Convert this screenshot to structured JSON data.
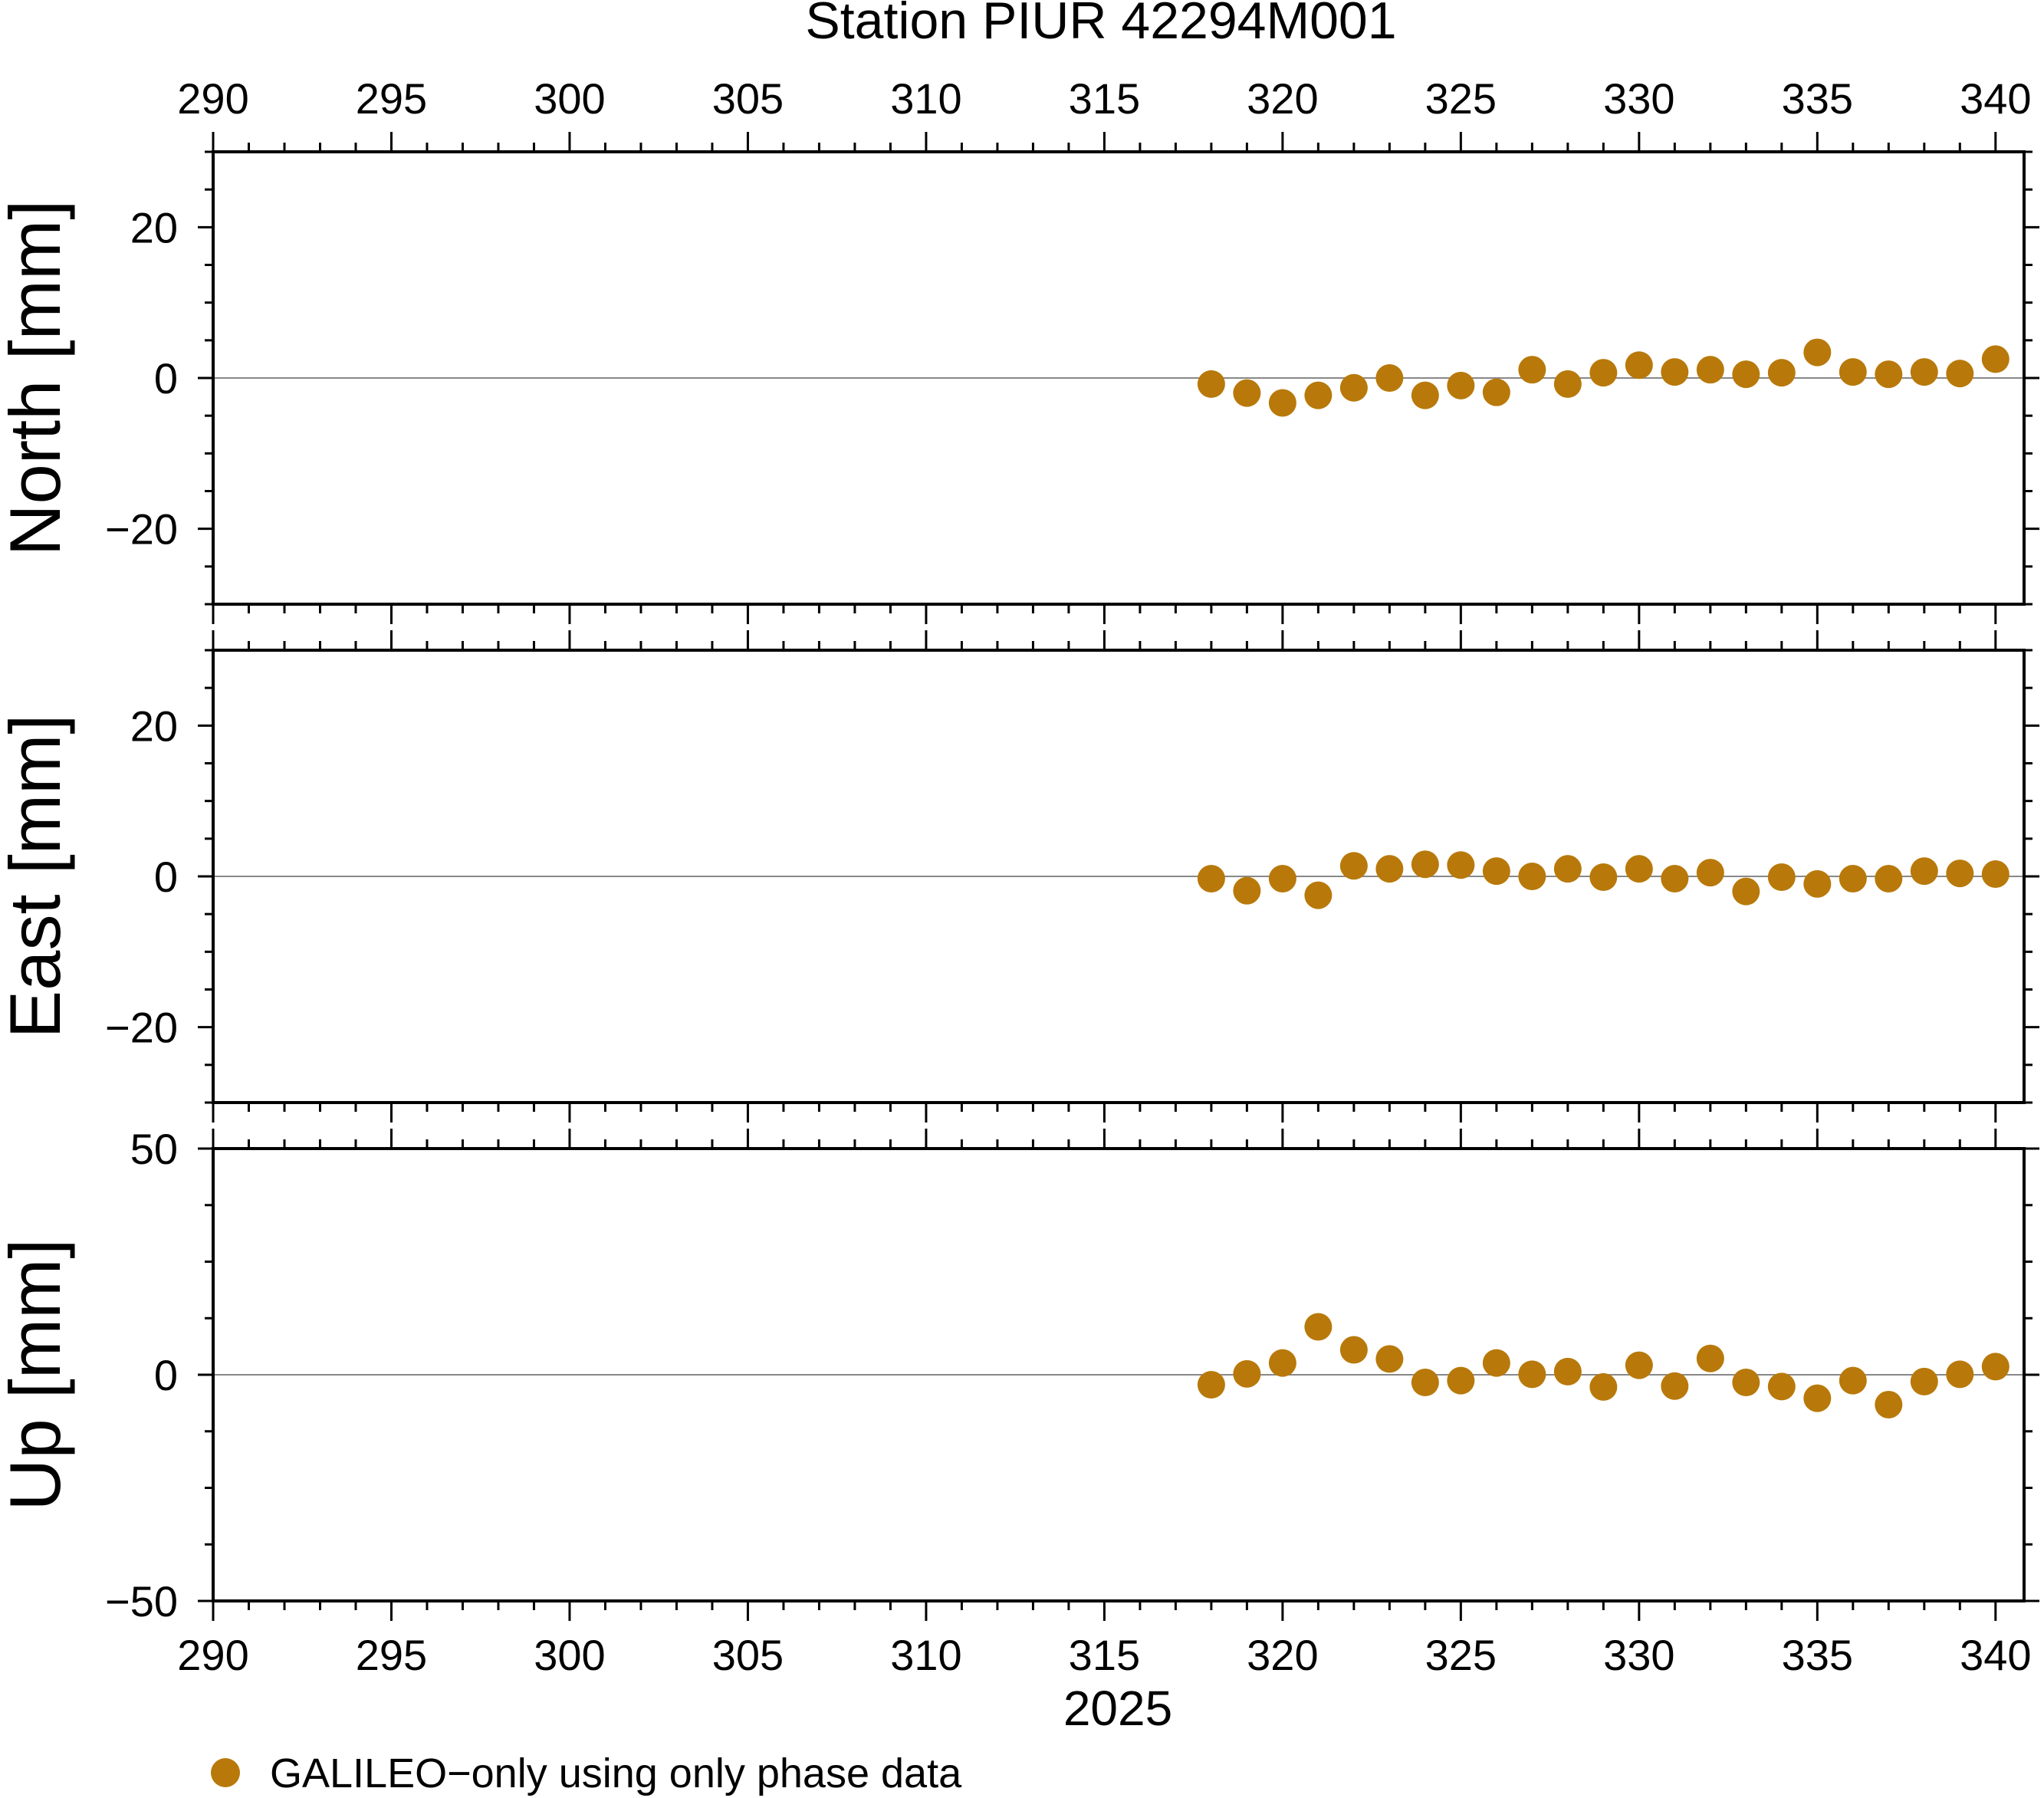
{
  "title": "Station PIUR 42294M001",
  "xlabel": "2025",
  "legend": {
    "label": "GALILEO−only using only phase data",
    "color": "#b8790a",
    "marker": "circle"
  },
  "chart_data": [
    {
      "type": "scatter",
      "ylabel": "North [mm]",
      "xlim": [
        290,
        340.8
      ],
      "ylim": [
        -30,
        30
      ],
      "x_ticks": [
        290,
        295,
        300,
        305,
        310,
        315,
        320,
        325,
        330,
        335,
        340
      ],
      "y_ticks": [
        -20,
        0,
        20
      ],
      "y_tick_labels": [
        "−20",
        "0",
        "20"
      ],
      "zero_line": true,
      "series": [
        {
          "color": "#b8790a",
          "x": [
            318,
            319,
            320,
            321,
            322,
            323,
            324,
            325,
            326,
            327,
            328,
            329,
            330,
            331,
            332,
            333,
            334,
            335,
            336,
            337,
            338,
            339,
            340
          ],
          "y": [
            -0.8,
            -2.0,
            -3.3,
            -2.3,
            -1.3,
            0.0,
            -2.3,
            -1.0,
            -1.9,
            1.1,
            -0.8,
            0.7,
            1.7,
            0.8,
            1.1,
            0.5,
            0.7,
            3.4,
            0.8,
            0.5,
            0.8,
            0.6,
            2.5
          ]
        }
      ]
    },
    {
      "type": "scatter",
      "ylabel": "East [mm]",
      "xlim": [
        290,
        340.8
      ],
      "ylim": [
        -30,
        30
      ],
      "x_ticks": [
        290,
        295,
        300,
        305,
        310,
        315,
        320,
        325,
        330,
        335,
        340
      ],
      "y_ticks": [
        -20,
        0,
        20
      ],
      "y_tick_labels": [
        "−20",
        "0",
        "20"
      ],
      "zero_line": true,
      "series": [
        {
          "color": "#b8790a",
          "x": [
            318,
            319,
            320,
            321,
            322,
            323,
            324,
            325,
            326,
            327,
            328,
            329,
            330,
            331,
            332,
            333,
            334,
            335,
            336,
            337,
            338,
            339,
            340
          ],
          "y": [
            -0.3,
            -1.9,
            -0.3,
            -2.5,
            1.4,
            1.0,
            1.6,
            1.5,
            0.7,
            0.0,
            1.0,
            -0.1,
            1.0,
            -0.3,
            0.5,
            -2.0,
            -0.1,
            -1.0,
            -0.3,
            -0.3,
            0.7,
            0.4,
            0.3
          ]
        }
      ]
    },
    {
      "type": "scatter",
      "ylabel": "Up [mm]",
      "xlim": [
        290,
        340.8
      ],
      "ylim": [
        -50,
        50
      ],
      "x_ticks": [
        290,
        295,
        300,
        305,
        310,
        315,
        320,
        325,
        330,
        335,
        340
      ],
      "y_ticks": [
        -50,
        0,
        50
      ],
      "y_tick_labels": [
        "−50",
        "0",
        "50"
      ],
      "zero_line": true,
      "series": [
        {
          "color": "#b8790a",
          "x": [
            318,
            319,
            320,
            321,
            322,
            323,
            324,
            325,
            326,
            327,
            328,
            329,
            330,
            331,
            332,
            333,
            334,
            335,
            336,
            337,
            338,
            339,
            340
          ],
          "y": [
            -2.2,
            0.2,
            2.6,
            10.6,
            5.5,
            3.5,
            -1.7,
            -1.3,
            2.6,
            0.1,
            0.7,
            -2.7,
            2.1,
            -2.5,
            3.6,
            -1.7,
            -2.6,
            -5.2,
            -1.3,
            -6.6,
            -1.5,
            0.1,
            1.8
          ]
        }
      ]
    }
  ]
}
